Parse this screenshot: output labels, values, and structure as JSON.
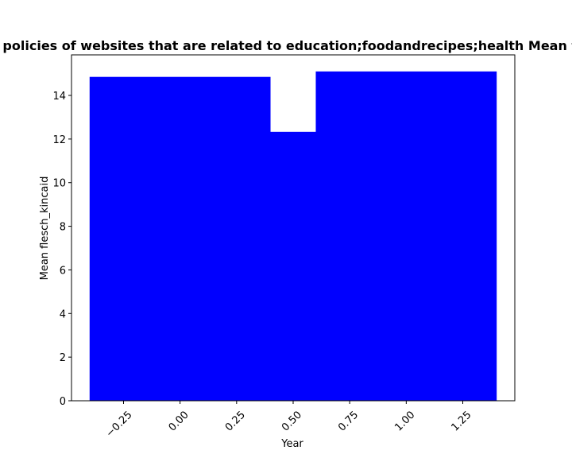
{
  "chart_data": {
    "type": "bar",
    "title": "Mean flesch_kincaid of privacy policies of websites that are related to education;foodandrecipes;health Mean flesch_kincaid in privacy policies",
    "xlabel": "Year",
    "ylabel": "Mean flesch_kincaid",
    "bars": [
      {
        "x": 0,
        "value": 14.85
      },
      {
        "x": 0.5,
        "value": 12.33
      },
      {
        "x": 1,
        "value": 15.1
      }
    ],
    "bar_width": 0.8,
    "bar_color": "#0000ff",
    "xlim": [
      -0.48,
      1.48
    ],
    "ylim": [
      0,
      15.86
    ],
    "x_ticks": [
      {
        "value": -0.25,
        "label": "−0.25"
      },
      {
        "value": 0.0,
        "label": "0.00"
      },
      {
        "value": 0.25,
        "label": "0.25"
      },
      {
        "value": 0.5,
        "label": "0.50"
      },
      {
        "value": 0.75,
        "label": "0.75"
      },
      {
        "value": 1.0,
        "label": "1.00"
      },
      {
        "value": 1.25,
        "label": "1.25"
      }
    ],
    "y_ticks": [
      {
        "value": 0,
        "label": "0"
      },
      {
        "value": 2,
        "label": "2"
      },
      {
        "value": 4,
        "label": "4"
      },
      {
        "value": 6,
        "label": "6"
      },
      {
        "value": 8,
        "label": "8"
      },
      {
        "value": 10,
        "label": "10"
      },
      {
        "value": 12,
        "label": "12"
      },
      {
        "value": 14,
        "label": "14"
      }
    ],
    "grid": false,
    "legend": "none"
  }
}
